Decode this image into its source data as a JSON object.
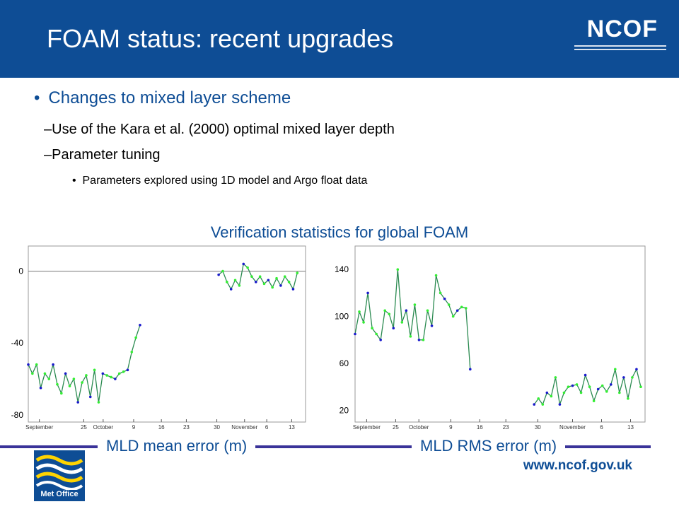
{
  "header": {
    "title": "FOAM status: recent upgrades",
    "brand": "NCOF"
  },
  "bullets": {
    "main": "Changes to mixed layer scheme",
    "sub1": "Use of the Kara et al. (2000) optimal mixed layer depth",
    "sub2": "Parameter tuning",
    "subsub1": "Parameters explored using 1D model and Argo float data"
  },
  "verification_title": "Verification statistics for global FOAM",
  "footer": {
    "url": "www.ncof.gov.uk",
    "logo_text": "Met Office"
  },
  "colors": {
    "header_bg": "#0e4d95",
    "accent_text": "#0e4d95",
    "series_model": "#2a8a50",
    "series_blue": "#1a1acc",
    "series_green": "#33ee33"
  },
  "chart_data": [
    {
      "type": "line",
      "caption": "MLD mean error (m)",
      "x_tick_labels": [
        "September",
        "25",
        "October",
        "9",
        "16",
        "23",
        "30",
        "November",
        "6",
        "13"
      ],
      "y_ticks": [
        0,
        -40,
        -80
      ],
      "ylim": [
        -84,
        14
      ],
      "zero_line": true,
      "segments": [
        {
          "x": [
            0,
            1,
            2,
            3,
            4,
            5,
            6,
            7,
            8,
            9,
            10,
            11,
            12,
            13,
            14,
            15,
            16,
            17,
            18,
            19,
            20,
            21,
            22,
            23,
            24,
            25,
            26,
            27
          ],
          "y": [
            -52,
            -57,
            -52,
            -65,
            -57,
            -60,
            -52,
            -63,
            -68,
            -57,
            -64,
            -60,
            -73,
            -62,
            -58,
            -70,
            -55,
            -73,
            -57,
            -58,
            -59,
            -60,
            -57,
            -56,
            -55,
            -45,
            -37,
            -30
          ]
        },
        {
          "x": [
            46,
            47,
            48,
            49,
            50,
            51,
            52,
            53,
            54,
            55,
            56,
            57,
            58,
            59,
            60,
            61,
            62,
            63,
            64,
            65
          ],
          "y": [
            -2,
            0,
            -6,
            -10,
            -5,
            -8,
            4,
            2,
            -3,
            -6,
            -3,
            -7,
            -5,
            -9,
            -4,
            -8,
            -3,
            -6,
            -10,
            -1
          ]
        }
      ]
    },
    {
      "type": "line",
      "caption": "MLD RMS error (m)",
      "x_tick_labels": [
        "September",
        "25",
        "October",
        "9",
        "16",
        "23",
        "30",
        "November",
        "6",
        "13"
      ],
      "y_ticks": [
        140,
        100,
        60,
        20
      ],
      "ylim": [
        10,
        160
      ],
      "segments": [
        {
          "x": [
            0,
            1,
            2,
            3,
            4,
            5,
            6,
            7,
            8,
            9,
            10,
            11,
            12,
            13,
            14,
            15,
            16,
            17,
            18,
            19,
            20,
            21,
            22,
            23,
            24,
            25,
            26,
            27
          ],
          "y": [
            85,
            104,
            95,
            120,
            90,
            85,
            80,
            105,
            102,
            90,
            140,
            95,
            105,
            83,
            110,
            80,
            80,
            105,
            92,
            135,
            120,
            115,
            110,
            100,
            105,
            108,
            107,
            55
          ]
        },
        {
          "x": [
            42,
            43,
            44,
            45,
            46,
            47,
            48,
            49,
            50,
            51,
            52,
            53,
            54,
            55,
            56,
            57,
            58,
            59,
            60,
            61,
            62,
            63,
            64,
            65,
            66,
            67
          ],
          "y": [
            25,
            30,
            25,
            35,
            32,
            48,
            25,
            35,
            40,
            41,
            42,
            35,
            50,
            40,
            28,
            38,
            41,
            36,
            42,
            55,
            35,
            48,
            30,
            48,
            55,
            40
          ]
        }
      ]
    }
  ]
}
